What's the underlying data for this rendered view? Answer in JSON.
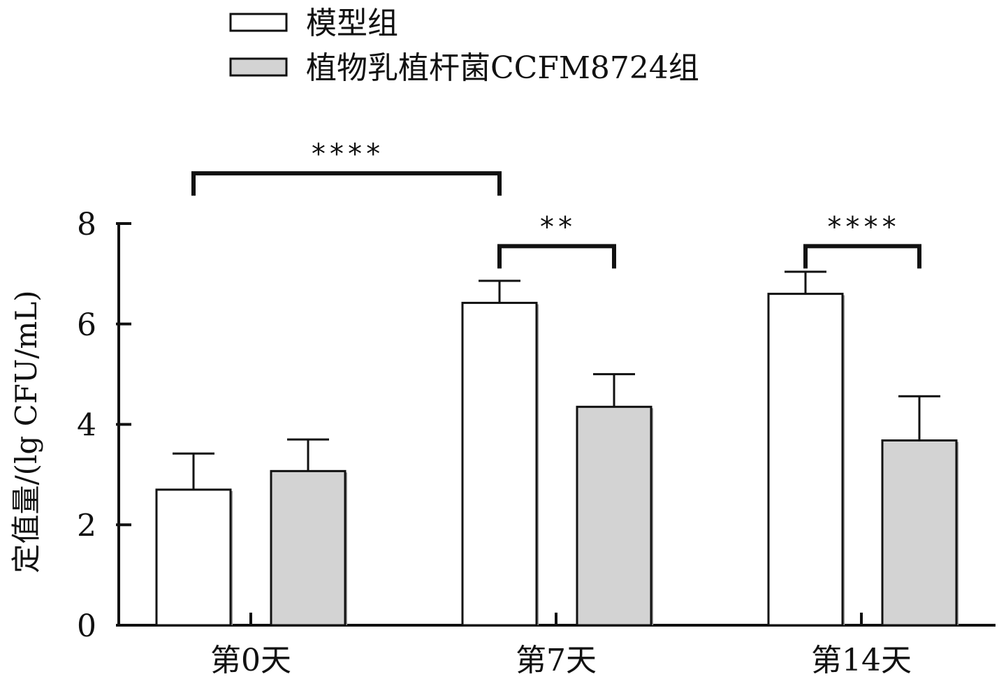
{
  "chart_data": {
    "type": "bar",
    "title": "",
    "xlabel": "",
    "ylabel": "定值量/(lg CFU/mL)",
    "ylim": [
      0,
      8
    ],
    "yticks": [
      0,
      2,
      4,
      6,
      8
    ],
    "categories": [
      "第0天",
      "第7天",
      "第14天"
    ],
    "legend_position": "top-left",
    "grid": false,
    "series": [
      {
        "name": "模型组",
        "color": "#ffffff",
        "values": [
          2.7,
          6.42,
          6.6
        ],
        "errors": [
          0.72,
          0.44,
          0.44
        ]
      },
      {
        "name": "植物乳植杆菌CCFM8724组",
        "color": "#d3d3d3",
        "values": [
          3.07,
          4.35,
          3.68
        ],
        "errors": [
          0.63,
          0.65,
          0.88
        ]
      }
    ],
    "significance": [
      {
        "label": "****",
        "from_category": 0,
        "from_series": 0,
        "to_category": 1,
        "to_series": 0,
        "level": 9.0
      },
      {
        "label": "**",
        "from_category": 1,
        "from_series": 0,
        "to_category": 1,
        "to_series": 1,
        "level": 7.55
      },
      {
        "label": "****",
        "from_category": 2,
        "from_series": 0,
        "to_category": 2,
        "to_series": 1,
        "level": 7.55
      }
    ]
  }
}
